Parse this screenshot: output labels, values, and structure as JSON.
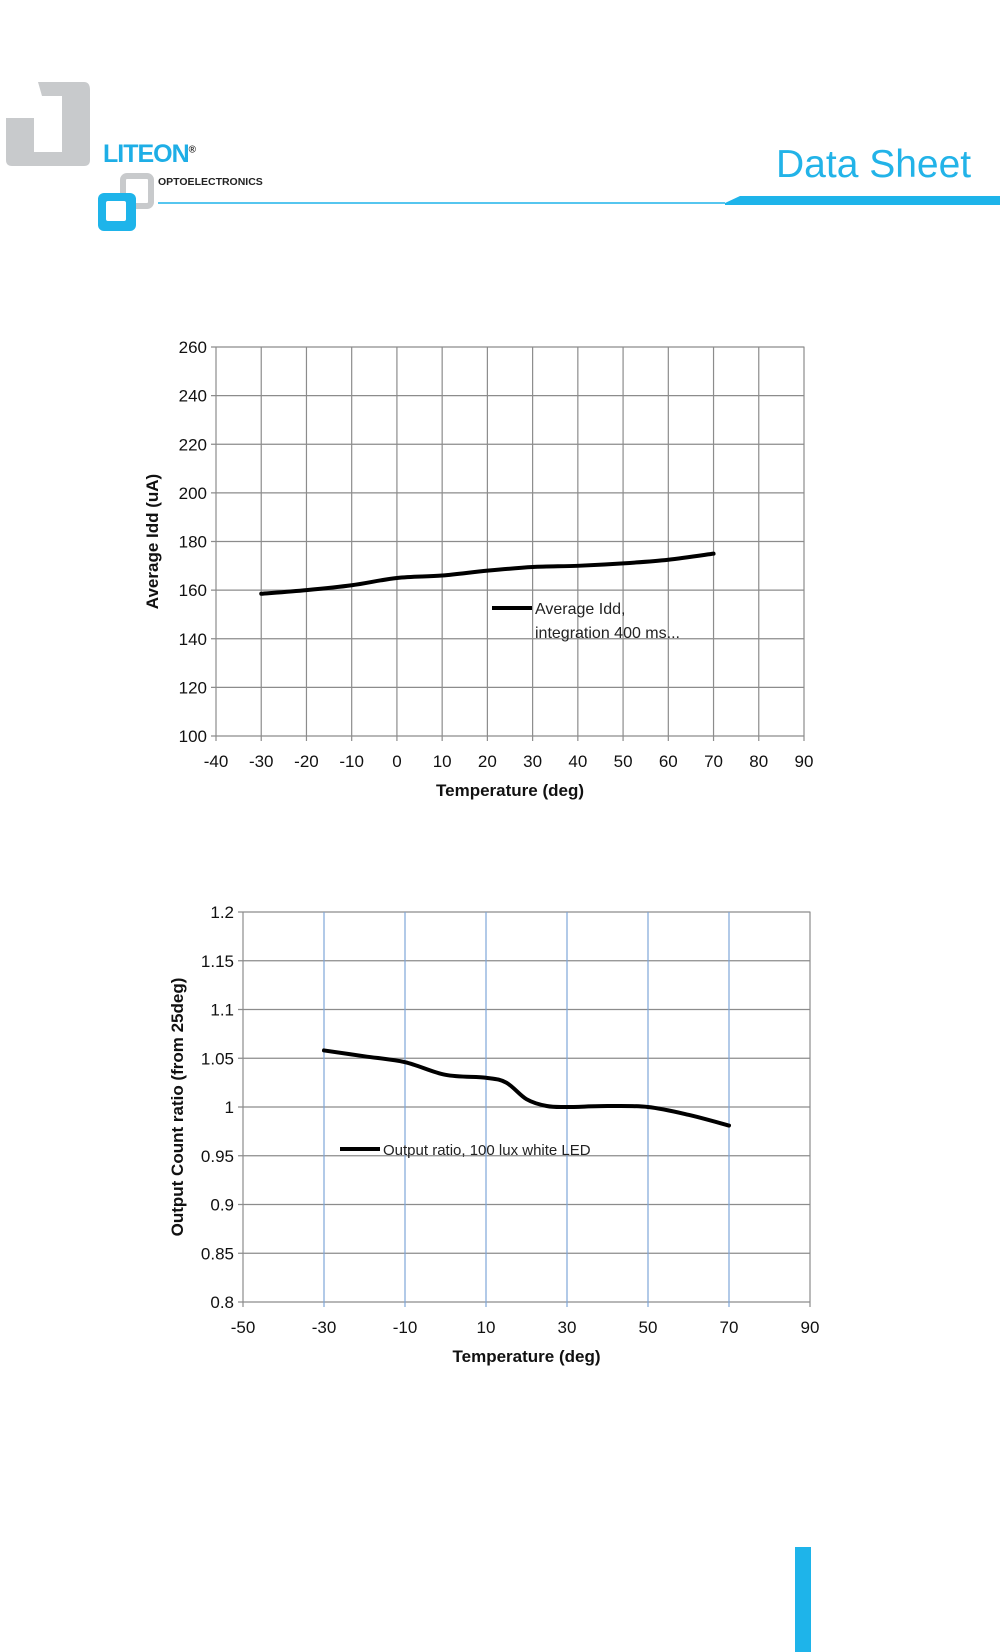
{
  "header": {
    "brand": "LITEON",
    "brand_mark": "®",
    "brand_sub": "OPTOELECTRONICS",
    "title": "Data Sheet",
    "accent_color": "#1eb4ea"
  },
  "chart_data": [
    {
      "type": "line",
      "title": "",
      "xlabel": "Temperature (deg)",
      "ylabel": "Average Idd (uA)",
      "xlim": [
        -40,
        90
      ],
      "ylim": [
        100,
        260
      ],
      "xticks": [
        -40,
        -30,
        -20,
        -10,
        0,
        10,
        20,
        30,
        40,
        50,
        60,
        70,
        80,
        90
      ],
      "yticks": [
        100,
        120,
        140,
        160,
        180,
        200,
        220,
        240,
        260
      ],
      "grid": true,
      "legend": "center-right",
      "series": [
        {
          "name": "Average Idd, integration 400 ms...",
          "x": [
            -30,
            -20,
            -10,
            0,
            10,
            20,
            30,
            40,
            50,
            60,
            70
          ],
          "y": [
            158.5,
            160,
            162,
            165,
            166,
            168,
            169.5,
            170,
            171,
            172.5,
            175
          ],
          "color": "#000000"
        }
      ]
    },
    {
      "type": "line",
      "title": "",
      "xlabel": "Temperature (deg)",
      "ylabel": "Output Count ratio (from 25deg)",
      "xlim": [
        -50,
        90
      ],
      "ylim": [
        0.8,
        1.2
      ],
      "xticks": [
        -50,
        -30,
        -10,
        10,
        30,
        50,
        70,
        90
      ],
      "yticks": [
        0.8,
        0.85,
        0.9,
        0.95,
        1,
        1.05,
        1.1,
        1.15,
        1.2
      ],
      "ytick_labels": [
        "0.8",
        "0.85",
        "0.9",
        "0.95",
        "1",
        "1.05",
        "1.1",
        "1.15",
        "1.2"
      ],
      "grid": true,
      "legend": "bottom-left",
      "series": [
        {
          "name": "Output ratio, 100 lux white LED",
          "x": [
            -30,
            -20,
            -10,
            0,
            10,
            15,
            20,
            25,
            30,
            40,
            50,
            60,
            70
          ],
          "y": [
            1.058,
            1.052,
            1.046,
            1.033,
            1.03,
            1.025,
            1.008,
            1.001,
            1.0,
            1.001,
            1.0,
            0.992,
            0.981
          ],
          "color": "#000000"
        }
      ]
    }
  ]
}
